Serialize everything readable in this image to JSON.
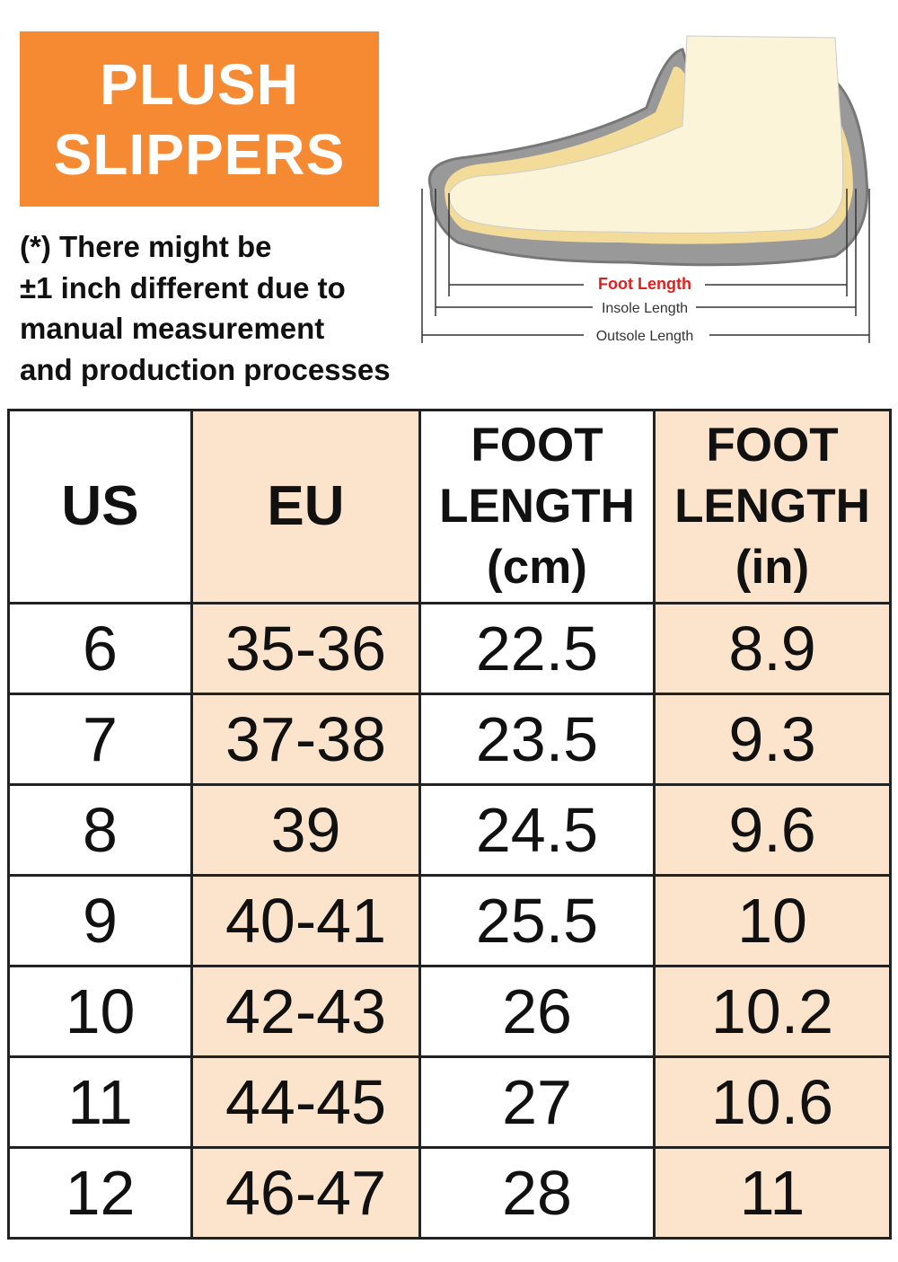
{
  "badge": {
    "lines": [
      "PLUSH",
      "SLIPPERS"
    ]
  },
  "note": {
    "lines": [
      "(*) There might be",
      "±1 inch different due to",
      "manual measurement",
      "and production processes"
    ]
  },
  "diagram": {
    "labels": [
      "Foot Length",
      "Insole Length",
      "Outsole Length"
    ]
  },
  "table": {
    "headers": [
      [
        "US"
      ],
      [
        "EU"
      ],
      [
        "FOOT",
        "LENGTH",
        "(cm)"
      ],
      [
        "FOOT",
        "LENGTH",
        "(in)"
      ]
    ],
    "rows": [
      [
        "6",
        "35-36",
        "22.5",
        "8.9"
      ],
      [
        "7",
        "37-38",
        "23.5",
        "9.3"
      ],
      [
        "8",
        "39",
        "24.5",
        "9.6"
      ],
      [
        "9",
        "40-41",
        "25.5",
        "10"
      ],
      [
        "10",
        "42-43",
        "26",
        "10.2"
      ],
      [
        "11",
        "44-45",
        "27",
        "10.6"
      ],
      [
        "12",
        "46-47",
        "28",
        "11"
      ]
    ]
  }
}
